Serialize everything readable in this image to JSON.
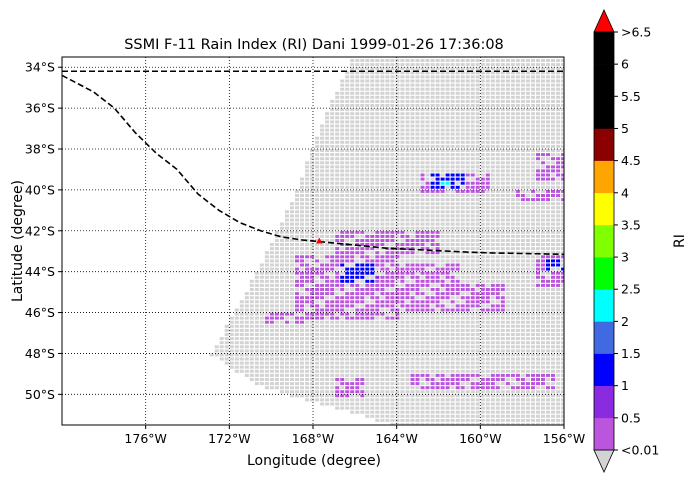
{
  "chart_data": {
    "type": "heatmap",
    "title": "SSMI F-11 Rain Index (RI) Dani 1999-01-26 17:36:08",
    "xlabel": "Longitude (degree)",
    "ylabel": "Latitude (degree)",
    "xlim": [
      -180,
      -156
    ],
    "ylim": [
      -51.5,
      -33.5
    ],
    "x_ticks": [
      {
        "value": -176,
        "label": "176°W"
      },
      {
        "value": -172,
        "label": "172°W"
      },
      {
        "value": -168,
        "label": "168°W"
      },
      {
        "value": -164,
        "label": "164°W"
      },
      {
        "value": -160,
        "label": "160°W"
      },
      {
        "value": -156,
        "label": "156°W"
      }
    ],
    "y_ticks": [
      {
        "value": -34,
        "label": "34°S"
      },
      {
        "value": -36,
        "label": "36°S"
      },
      {
        "value": -38,
        "label": "38°S"
      },
      {
        "value": -40,
        "label": "40°S"
      },
      {
        "value": -42,
        "label": "42°S"
      },
      {
        "value": -44,
        "label": "44°S"
      },
      {
        "value": -46,
        "label": "46°S"
      },
      {
        "value": -48,
        "label": "48°S"
      },
      {
        "value": -50,
        "label": "50°S"
      }
    ],
    "grid": true,
    "colorbar": {
      "label": "RI",
      "under_color": "#d3d3d3",
      "over_color": "#ff0000",
      "bins": [
        {
          "color": "#bb55dd"
        },
        {
          "color": "#8a2be2"
        },
        {
          "color": "#0000ff"
        },
        {
          "color": "#4169e1"
        },
        {
          "color": "#00ffff"
        },
        {
          "color": "#00ff00"
        },
        {
          "color": "#7fff00"
        },
        {
          "color": "#ffff00"
        },
        {
          "color": "#ffa500"
        },
        {
          "color": "#8b0000"
        },
        {
          "color": "#000000"
        },
        {
          "color": "#000000"
        },
        {
          "color": "#000000"
        }
      ],
      "tick_labels": [
        "<0.01",
        "0.5",
        "1",
        "1.5",
        "2",
        "2.5",
        "3",
        "3.5",
        "4",
        "4.5",
        "5",
        "5.5",
        "6",
        ">6.5"
      ]
    },
    "storm_track": [
      [
        -180,
        -34.4
      ],
      [
        -178.5,
        -35.2
      ],
      [
        -177.5,
        -36.0
      ],
      [
        -176.5,
        -37.2
      ],
      [
        -175.5,
        -38.2
      ],
      [
        -174.5,
        -39.0
      ],
      [
        -173.5,
        -40.2
      ],
      [
        -172.5,
        -41.0
      ],
      [
        -171.5,
        -41.6
      ],
      [
        -170.5,
        -42.0
      ],
      [
        -169.5,
        -42.3
      ],
      [
        -168.5,
        -42.45
      ],
      [
        -167.5,
        -42.55
      ],
      [
        -166.5,
        -42.65
      ],
      [
        -165.5,
        -42.75
      ],
      [
        -164.5,
        -42.85
      ],
      [
        -163.5,
        -42.9
      ],
      [
        -162.5,
        -42.95
      ],
      [
        -161.5,
        -43.0
      ],
      [
        -160.5,
        -43.05
      ],
      [
        -159.5,
        -43.08
      ],
      [
        -158.5,
        -43.1
      ],
      [
        -157.5,
        -43.12
      ],
      [
        -156.0,
        -43.15
      ]
    ],
    "reference_line_lat": -34.2,
    "storm_center": {
      "lon": -167.7,
      "lat": -42.5
    },
    "swath_polygon": [
      [
        -166.2,
        -33.5
      ],
      [
        -156.0,
        -33.5
      ],
      [
        -156.0,
        -51.5
      ],
      [
        -164.0,
        -51.5
      ],
      [
        -170.5,
        -49.6
      ],
      [
        -173.0,
        -48.0
      ],
      [
        -170.8,
        -44.0
      ],
      [
        -168.9,
        -40.0
      ],
      [
        -167.6,
        -36.5
      ]
    ],
    "rain_regions": [
      {
        "lon": [
          -167.0,
          -161.0
        ],
        "lat": [
          -43.5,
          -45.5
        ],
        "value": 0.3
      },
      {
        "lon": [
          -169.0,
          -164.0
        ],
        "lat": [
          -43.2,
          -46.4
        ],
        "value": 0.3
      },
      {
        "lon": [
          -164.0,
          -159.0
        ],
        "lat": [
          -44.5,
          -46.0
        ],
        "value": 0.3
      },
      {
        "lon": [
          -167.0,
          -162.0
        ],
        "lat": [
          -42.0,
          -43.2
        ],
        "value": 0.3
      },
      {
        "lon": [
          -166.8,
          -165.2
        ],
        "lat": [
          -43.6,
          -44.5
        ],
        "value": 1.2
      },
      {
        "lon": [
          -165.8,
          -165.0
        ],
        "lat": [
          -43.9,
          -44.3
        ],
        "value": 0.8
      },
      {
        "lon": [
          -163.0,
          -159.5
        ],
        "lat": [
          -39.1,
          -40.1
        ],
        "value": 0.3
      },
      {
        "lon": [
          -162.6,
          -160.8
        ],
        "lat": [
          -39.2,
          -39.9
        ],
        "value": 1.2
      },
      {
        "lon": [
          -162.0,
          -161.5
        ],
        "lat": [
          -39.6,
          -39.8
        ],
        "value": 2.2
      },
      {
        "lon": [
          -157.5,
          -156.0
        ],
        "lat": [
          -43.2,
          -44.8
        ],
        "value": 0.3
      },
      {
        "lon": [
          -157.0,
          -156.0
        ],
        "lat": [
          -43.4,
          -43.9
        ],
        "value": 1.2
      },
      {
        "lon": [
          -158.5,
          -156.0
        ],
        "lat": [
          -40.0,
          -40.6
        ],
        "value": 0.3
      },
      {
        "lon": [
          -157.5,
          -156.0
        ],
        "lat": [
          -38.2,
          -39.5
        ],
        "value": 0.3
      },
      {
        "lon": [
          -163.5,
          -156.5
        ],
        "lat": [
          -49.0,
          -49.7
        ],
        "value": 0.3
      },
      {
        "lon": [
          -167.0,
          -165.5
        ],
        "lat": [
          -49.2,
          -50.2
        ],
        "value": 0.3
      },
      {
        "lon": [
          -170.5,
          -168.5
        ],
        "lat": [
          -46.0,
          -46.5
        ],
        "value": 0.3
      }
    ]
  }
}
